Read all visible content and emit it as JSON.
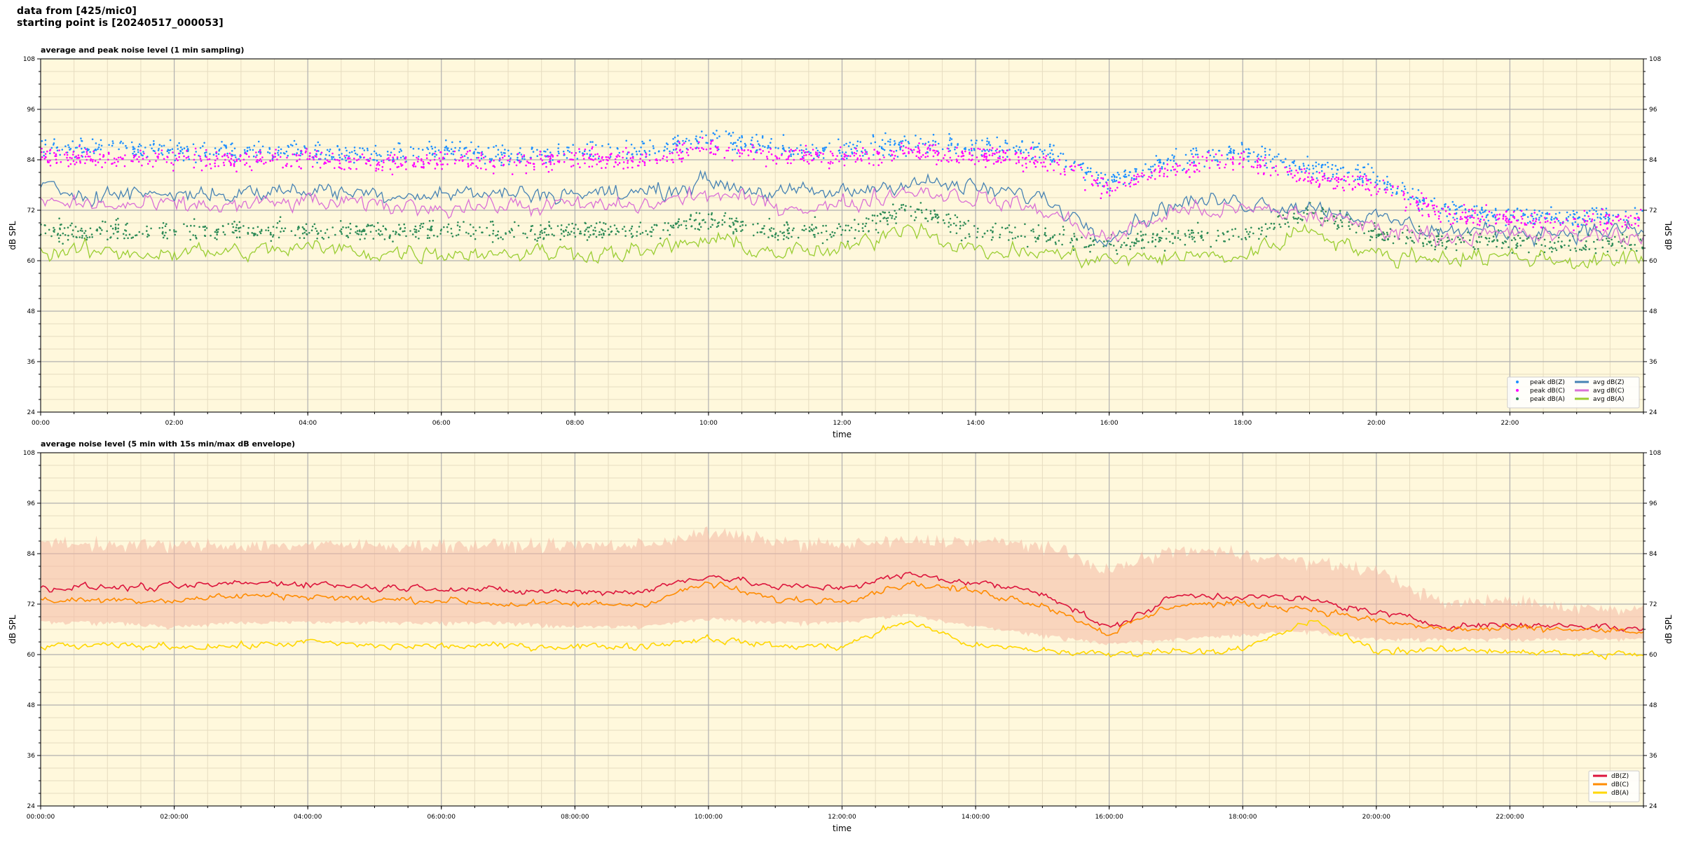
{
  "header": {
    "line1": "data from [425/mic0]",
    "line2": "starting point is [20240517_000053]"
  },
  "colors": {
    "background": "#fff8dc",
    "grid_major": "#b0b0b0",
    "grid_minor": "#e6dcc0",
    "peak_z": "#1e90ff",
    "peak_c": "#ff00ff",
    "peak_a": "#2e8b57",
    "avg_z": "#4682b4",
    "avg_c": "#da70d6",
    "avg_a": "#9acd32",
    "db_z": "#dc143c",
    "db_c": "#ff8c00",
    "db_a": "#ffd700",
    "envelope": "#f4b8a4"
  },
  "chart_data": [
    {
      "type": "line",
      "title": "average and peak noise level (1 min sampling)",
      "xlabel": "time",
      "ylabel": "dB SPL",
      "ylabel_right": "dB SPL",
      "xlim": [
        0,
        24
      ],
      "ylim": [
        24,
        108
      ],
      "x_unit": "hours since 00:00",
      "ytick_labels": [
        "24",
        "36",
        "48",
        "60",
        "72",
        "84",
        "96",
        "108"
      ],
      "xtick_labels": [
        "00:00",
        "02:00",
        "04:00",
        "06:00",
        "08:00",
        "10:00",
        "12:00",
        "14:00",
        "16:00",
        "18:00",
        "20:00",
        "22:00"
      ],
      "grid": true,
      "legend_position": "lower-right",
      "legend_columns": 2,
      "series": [
        {
          "name": "peak dB(Z)",
          "kind": "scatter",
          "color_key": "peak_z",
          "x": [
            0,
            1,
            2,
            3,
            4,
            5,
            6,
            7,
            8,
            9,
            10,
            11,
            12,
            13,
            14,
            15,
            16,
            17,
            18,
            19,
            20,
            21,
            22,
            23,
            24
          ],
          "y": [
            87,
            87,
            86,
            86,
            86,
            85,
            86,
            85,
            86,
            86,
            89,
            87,
            86,
            88,
            87,
            86,
            79,
            84,
            86,
            82,
            80,
            72,
            71,
            70,
            71
          ]
        },
        {
          "name": "peak dB(C)",
          "kind": "scatter",
          "color_key": "peak_c",
          "x": [
            0,
            1,
            2,
            3,
            4,
            5,
            6,
            7,
            8,
            9,
            10,
            11,
            12,
            13,
            14,
            15,
            16,
            17,
            18,
            19,
            20,
            21,
            22,
            23,
            24
          ],
          "y": [
            85,
            84,
            84,
            84,
            84,
            83,
            84,
            83,
            84,
            84,
            87,
            85,
            84,
            86,
            85,
            84,
            77,
            82,
            84,
            80,
            78,
            71,
            70,
            69,
            70
          ]
        },
        {
          "name": "peak dB(A)",
          "kind": "scatter",
          "color_key": "peak_a",
          "x": [
            0,
            1,
            2,
            3,
            4,
            5,
            6,
            7,
            8,
            9,
            10,
            11,
            12,
            13,
            14,
            15,
            16,
            17,
            18,
            19,
            20,
            21,
            22,
            23,
            24
          ],
          "y": [
            67,
            67,
            67,
            67,
            67,
            67,
            67,
            67,
            67,
            67,
            70,
            67,
            67,
            72,
            67,
            66,
            64,
            66,
            66,
            72,
            66,
            65,
            64,
            64,
            64
          ]
        },
        {
          "name": "avg dB(Z)",
          "kind": "line",
          "color_key": "avg_z",
          "x": [
            0,
            1,
            2,
            3,
            4,
            5,
            6,
            7,
            8,
            9,
            10,
            11,
            12,
            13,
            14,
            15,
            16,
            17,
            18,
            19,
            20,
            21,
            22,
            23,
            24
          ],
          "y": [
            77,
            76,
            76,
            76,
            77,
            76,
            76,
            76,
            76,
            76,
            79,
            76,
            76,
            79,
            77,
            75,
            66,
            74,
            74,
            73,
            70,
            67,
            67,
            67,
            67
          ]
        },
        {
          "name": "avg dB(C)",
          "kind": "line",
          "color_key": "avg_c",
          "x": [
            0,
            1,
            2,
            3,
            4,
            5,
            6,
            7,
            8,
            9,
            10,
            11,
            12,
            13,
            14,
            15,
            16,
            17,
            18,
            19,
            20,
            21,
            22,
            23,
            24
          ],
          "y": [
            74,
            73,
            73,
            73,
            74,
            73,
            73,
            73,
            73,
            73,
            76,
            73,
            73,
            77,
            75,
            72,
            65,
            72,
            72,
            71,
            68,
            66,
            66,
            66,
            66
          ]
        },
        {
          "name": "avg dB(A)",
          "kind": "line",
          "color_key": "avg_a",
          "x": [
            0,
            1,
            2,
            3,
            4,
            5,
            6,
            7,
            8,
            9,
            10,
            11,
            12,
            13,
            14,
            15,
            16,
            17,
            18,
            19,
            20,
            21,
            22,
            23,
            24
          ],
          "y": [
            62,
            62,
            62,
            62,
            63,
            62,
            62,
            62,
            62,
            62,
            65,
            62,
            62,
            69,
            62,
            62,
            60,
            61,
            61,
            68,
            61,
            61,
            61,
            60,
            60
          ]
        }
      ]
    },
    {
      "type": "line",
      "title": "average noise level (5 min with 15s min/max dB envelope)",
      "xlabel": "time",
      "ylabel": "dB SPL",
      "ylabel_right": "dB SPL",
      "xlim": [
        0,
        24
      ],
      "ylim": [
        24,
        108
      ],
      "x_unit": "hours since 00:00:00",
      "ytick_labels": [
        "24",
        "36",
        "48",
        "60",
        "72",
        "84",
        "96",
        "108"
      ],
      "xtick_labels": [
        "00:00:00",
        "02:00:00",
        "04:00:00",
        "06:00:00",
        "08:00:00",
        "10:00:00",
        "12:00:00",
        "14:00:00",
        "16:00:00",
        "18:00:00",
        "20:00:00",
        "22:00:00"
      ],
      "grid": true,
      "legend_position": "lower-right",
      "legend_columns": 1,
      "envelope": {
        "color_key": "envelope",
        "x": [
          0,
          1,
          2,
          3,
          4,
          5,
          6,
          7,
          8,
          9,
          10,
          11,
          12,
          13,
          14,
          15,
          16,
          17,
          18,
          19,
          20,
          21,
          22,
          23,
          24
        ],
        "min": [
          68,
          68,
          67,
          68,
          68,
          68,
          68,
          68,
          67,
          67,
          69,
          68,
          68,
          70,
          67,
          65,
          63,
          64,
          65,
          66,
          64,
          64,
          64,
          64,
          64
        ],
        "max": [
          87,
          86,
          86,
          86,
          86,
          86,
          86,
          86,
          86,
          86,
          89,
          87,
          86,
          87,
          87,
          86,
          80,
          85,
          84,
          82,
          80,
          72,
          73,
          71,
          71
        ]
      },
      "series": [
        {
          "name": "dB(Z)",
          "color_key": "db_z",
          "x": [
            0,
            1,
            2,
            3,
            4,
            5,
            6,
            7,
            8,
            9,
            10,
            11,
            12,
            13,
            14,
            15,
            16,
            17,
            18,
            19,
            20,
            21,
            22,
            23,
            24
          ],
          "y": [
            76,
            76,
            76,
            77,
            77,
            76,
            76,
            75,
            75,
            75,
            79,
            76,
            76,
            79,
            77,
            75,
            66,
            74,
            74,
            73,
            70,
            67,
            67,
            67,
            66
          ]
        },
        {
          "name": "dB(C)",
          "color_key": "db_c",
          "x": [
            0,
            1,
            2,
            3,
            4,
            5,
            6,
            7,
            8,
            9,
            10,
            11,
            12,
            13,
            14,
            15,
            16,
            17,
            18,
            19,
            20,
            21,
            22,
            23,
            24
          ],
          "y": [
            73,
            73,
            73,
            74,
            74,
            73,
            73,
            72,
            72,
            72,
            77,
            73,
            73,
            77,
            75,
            72,
            65,
            72,
            72,
            71,
            68,
            66,
            66,
            66,
            65
          ]
        },
        {
          "name": "dB(A)",
          "color_key": "db_a",
          "x": [
            0,
            1,
            2,
            3,
            4,
            5,
            6,
            7,
            8,
            9,
            10,
            11,
            12,
            13,
            14,
            15,
            16,
            17,
            18,
            19,
            20,
            21,
            22,
            23,
            24
          ],
          "y": [
            62,
            62,
            62,
            62,
            63,
            62,
            62,
            62,
            62,
            62,
            64,
            62,
            62,
            68,
            62,
            61,
            60,
            61,
            61,
            68,
            61,
            61,
            61,
            60,
            60
          ]
        }
      ]
    }
  ]
}
